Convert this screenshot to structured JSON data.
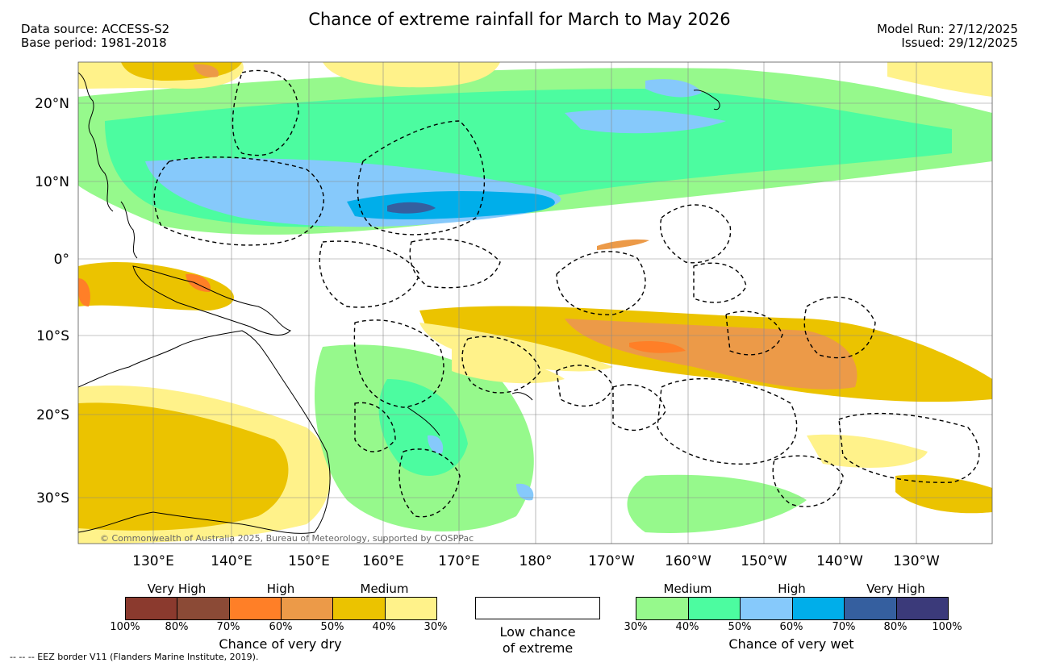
{
  "header": {
    "title": "Chance of extreme rainfall for March to May 2026",
    "data_source": "Data source: ACCESS-S2",
    "base_period": "Base period: 1981-2018",
    "model_run": "Model Run: 27/12/2025",
    "issued": "Issued: 29/12/2025"
  },
  "map": {
    "lat_labels": [
      "20°N",
      "10°N",
      "0°",
      "10°S",
      "20°S",
      "30°S"
    ],
    "lon_labels": [
      "130°E",
      "140°E",
      "150°E",
      "160°E",
      "170°E",
      "180°",
      "170°W",
      "160°W",
      "150°W",
      "140°W",
      "130°W"
    ],
    "credit": "© Commonwealth of Australia 2025, Bureau of Meteorology, supported by COSPPac"
  },
  "legend": {
    "dry": {
      "groups": [
        "Very High",
        "High",
        "Medium"
      ],
      "colors": [
        "#8b3a2e",
        "#8b4a36",
        "#ff7f27",
        "#ec9a48",
        "#ebc300",
        "#fff28a"
      ],
      "ticks": [
        "100%",
        "80%",
        "70%",
        "60%",
        "50%",
        "40%",
        "30%"
      ],
      "caption": "Chance of very dry"
    },
    "low": {
      "caption_line1": "Low chance",
      "caption_line2": "of extreme"
    },
    "wet": {
      "groups": [
        "Medium",
        "High",
        "Very High"
      ],
      "colors": [
        "#96f98c",
        "#4cfca0",
        "#86c9fb",
        "#00aeea",
        "#355f9f",
        "#3b3a7a"
      ],
      "ticks": [
        "30%",
        "40%",
        "50%",
        "60%",
        "70%",
        "80%",
        "100%"
      ],
      "caption": "Chance of very wet"
    }
  },
  "footer": {
    "eez_note": "-- -- -- EEZ border V11 (Flanders Marine Institute, 2019)."
  }
}
